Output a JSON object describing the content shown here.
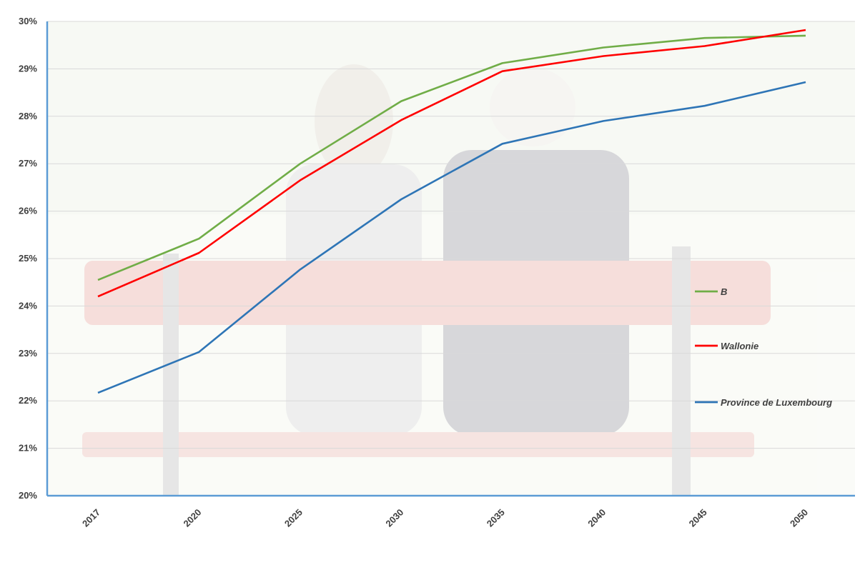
{
  "chart_data": {
    "type": "line",
    "categories": [
      "2017",
      "2020",
      "2025",
      "2030",
      "2035",
      "2040",
      "2045",
      "2050"
    ],
    "y_unit": "%",
    "ylim": [
      20,
      30
    ],
    "y_ticks": [
      "20%",
      "21%",
      "22%",
      "23%",
      "24%",
      "25%",
      "26%",
      "27%",
      "28%",
      "29%",
      "30%"
    ],
    "grid": true,
    "legend_position": "right",
    "series": [
      {
        "name": "B",
        "color": "#70ad47",
        "values": [
          24.55,
          25.42,
          27.0,
          28.32,
          29.12,
          29.45,
          29.65,
          29.7
        ]
      },
      {
        "name": "Wallonie",
        "color": "#ff0000",
        "values": [
          24.2,
          25.12,
          26.65,
          27.92,
          28.95,
          29.27,
          29.48,
          29.82
        ]
      },
      {
        "name": "Province de Luxembourg",
        "color": "#2e75b6",
        "values": [
          22.17,
          23.03,
          24.77,
          26.25,
          27.42,
          27.9,
          28.22,
          28.72
        ]
      }
    ]
  }
}
